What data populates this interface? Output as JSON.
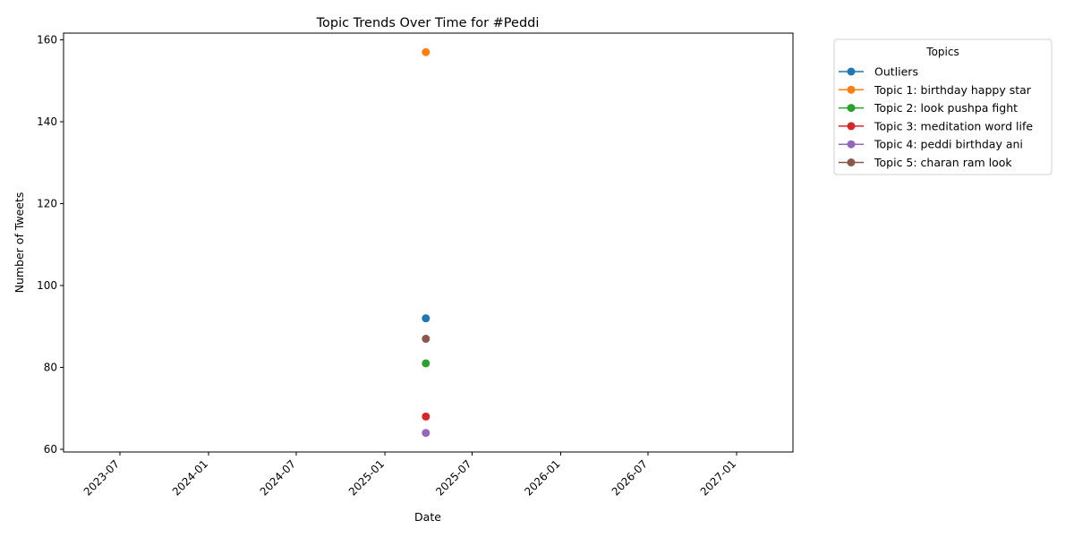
{
  "chart_data": {
    "type": "line",
    "title": "Topic Trends Over Time for #Peddi",
    "xlabel": "Date",
    "ylabel": "Number of Tweets",
    "x_ticks": [
      "2023-07",
      "2024-01",
      "2024-07",
      "2025-01",
      "2025-07",
      "2026-01",
      "2026-07",
      "2027-01"
    ],
    "y_ticks": [
      60,
      80,
      100,
      120,
      140,
      160
    ],
    "xlim": [
      "2023-03-06",
      "2027-04-28"
    ],
    "ylim": [
      59.35,
      161.65
    ],
    "grid": false,
    "legend": {
      "title": "Topics",
      "placement": "outside upper right"
    },
    "series": [
      {
        "name": "Outliers",
        "color": "#1f77b4",
        "points": [
          {
            "x": "2025-03-27",
            "y": 92
          }
        ]
      },
      {
        "name": "Topic 1: birthday happy star",
        "color": "#ff7f0e",
        "points": [
          {
            "x": "2025-03-27",
            "y": 157
          }
        ]
      },
      {
        "name": "Topic 2: look pushpa fight",
        "color": "#2ca02c",
        "points": [
          {
            "x": "2025-03-27",
            "y": 81
          }
        ]
      },
      {
        "name": "Topic 3: meditation word life",
        "color": "#d62728",
        "points": [
          {
            "x": "2025-03-27",
            "y": 68
          }
        ]
      },
      {
        "name": "Topic 4: peddi birthday ani",
        "color": "#9467bd",
        "points": [
          {
            "x": "2025-03-27",
            "y": 64
          }
        ]
      },
      {
        "name": "Topic 5: charan ram look",
        "color": "#8c564b",
        "points": [
          {
            "x": "2025-03-27",
            "y": 87
          }
        ]
      }
    ]
  }
}
